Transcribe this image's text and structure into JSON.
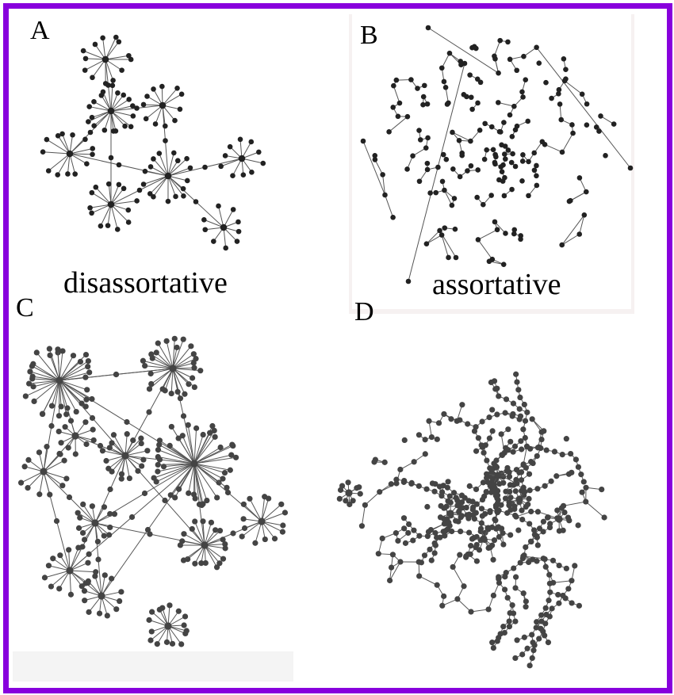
{
  "figure": {
    "border_color": "#8800dd",
    "node_color_top": "#222222",
    "node_color_bottom": "#444444",
    "edge_color": "#555555"
  },
  "panels": [
    {
      "id": "A",
      "letter": "A",
      "caption": "disassortative"
    },
    {
      "id": "B",
      "letter": "B",
      "caption": "assortative"
    },
    {
      "id": "C",
      "letter": "C",
      "caption": ""
    },
    {
      "id": "D",
      "letter": "D",
      "caption": ""
    }
  ]
}
